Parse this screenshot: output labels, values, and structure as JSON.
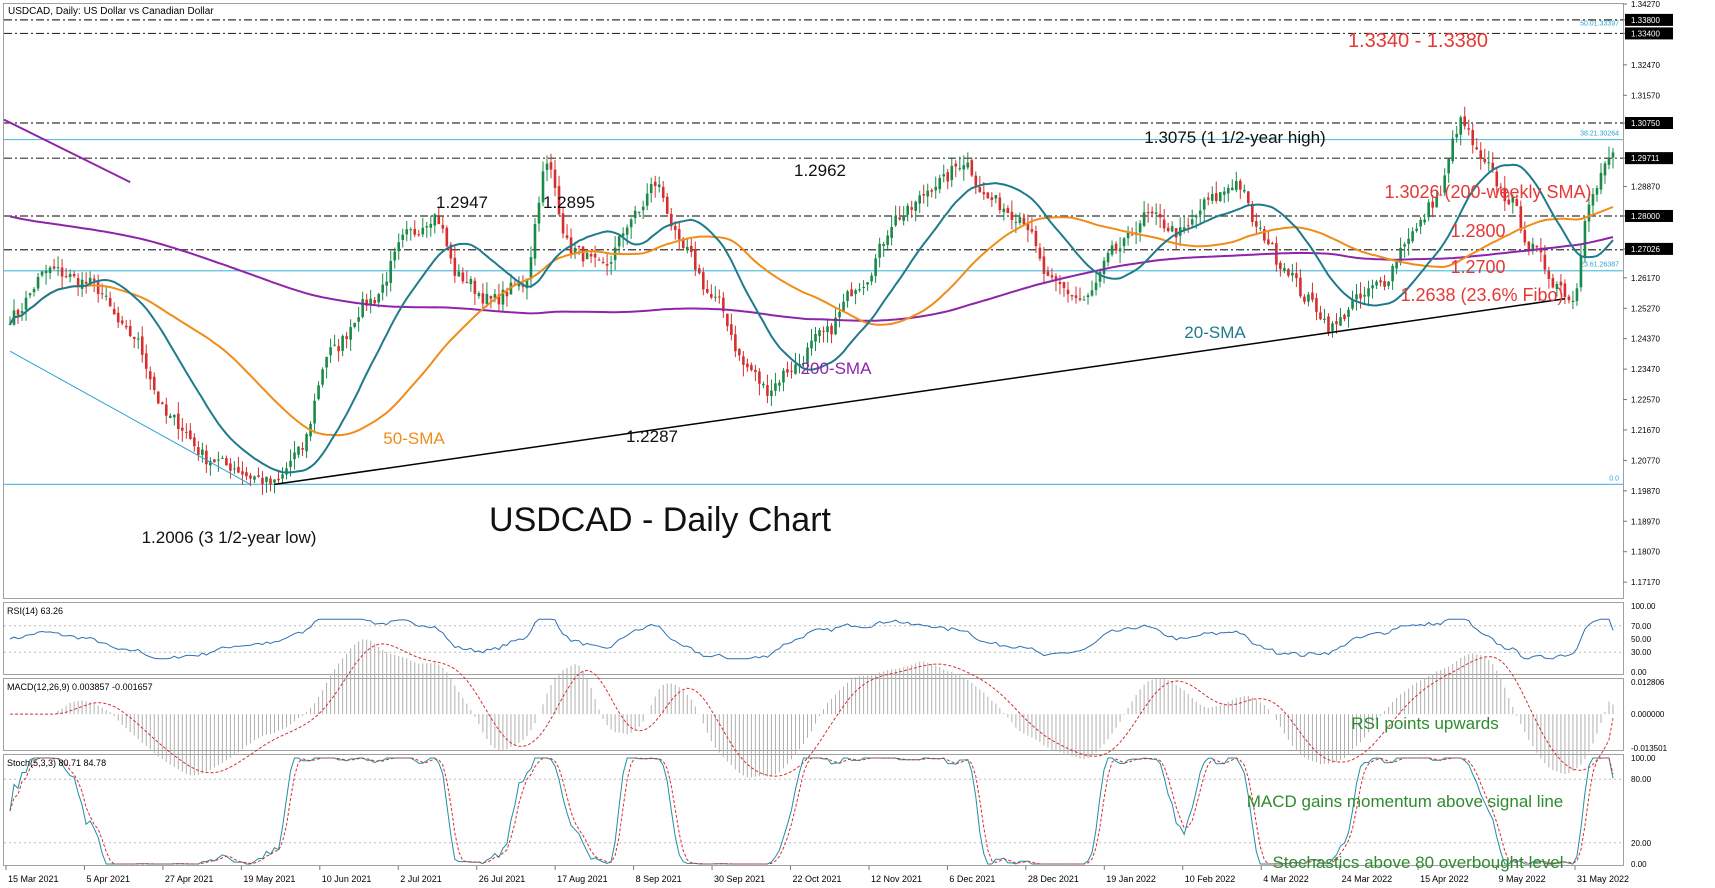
{
  "window": {
    "header": "USDCAD, Daily:  US Dollar vs Canadian Dollar"
  },
  "chart_data": {
    "type": "candlestick",
    "title": "USDCAD - Daily Chart",
    "symbol": "USDCAD",
    "timeframe": "Daily",
    "price_ylim": [
      1.167,
      1.3427
    ],
    "price_ticks": [
      "1.34270",
      "1.33800",
      "1.33400",
      "1.32470",
      "1.31570",
      "1.30750",
      "1.29711",
      "1.28870",
      "1.28000",
      "1.27026",
      "1.26170",
      "1.25270",
      "1.24370",
      "1.23470",
      "1.22570",
      "1.21670",
      "1.20770",
      "1.19870",
      "1.18970",
      "1.18070",
      "1.17170"
    ],
    "date_labels": [
      "15 Mar 2021",
      "5 Apr 2021",
      "27 Apr 2021",
      "19 May 2021",
      "10 Jun 2021",
      "2 Jul 2021",
      "26 Jul 2021",
      "17 Aug 2021",
      "8 Sep 2021",
      "30 Sep 2021",
      "22 Oct 2021",
      "12 Nov 2021",
      "6 Dec 2021",
      "28 Dec 2021",
      "19 Jan 2022",
      "10 Feb 2022",
      "4 Mar 2022",
      "24 Mar 2022",
      "15 Apr 2022",
      "9 May 2022",
      "31 May 2022"
    ],
    "ohlc_anchors": [
      [
        0,
        1.25
      ],
      [
        10,
        1.264
      ],
      [
        20,
        1.26
      ],
      [
        30,
        1.245
      ],
      [
        40,
        1.22
      ],
      [
        50,
        1.208
      ],
      [
        55,
        1.206
      ],
      [
        60,
        1.203
      ],
      [
        66,
        1.2006
      ],
      [
        72,
        1.21
      ],
      [
        80,
        1.24
      ],
      [
        90,
        1.255
      ],
      [
        100,
        1.275
      ],
      [
        106,
        1.28
      ],
      [
        112,
        1.262
      ],
      [
        120,
        1.255
      ],
      [
        128,
        1.26
      ],
      [
        134,
        1.2947
      ],
      [
        140,
        1.27
      ],
      [
        148,
        1.265
      ],
      [
        156,
        1.28
      ],
      [
        161,
        1.2895
      ],
      [
        168,
        1.27
      ],
      [
        176,
        1.255
      ],
      [
        184,
        1.235
      ],
      [
        189,
        1.2287
      ],
      [
        195,
        1.235
      ],
      [
        203,
        1.245
      ],
      [
        212,
        1.26
      ],
      [
        222,
        1.28
      ],
      [
        232,
        1.29
      ],
      [
        238,
        1.2962
      ],
      [
        244,
        1.285
      ],
      [
        252,
        1.28
      ],
      [
        260,
        1.26
      ],
      [
        268,
        1.255
      ],
      [
        276,
        1.27
      ],
      [
        284,
        1.28
      ],
      [
        292,
        1.275
      ],
      [
        300,
        1.285
      ],
      [
        306,
        1.29
      ],
      [
        312,
        1.275
      ],
      [
        318,
        1.265
      ],
      [
        324,
        1.255
      ],
      [
        330,
        1.247
      ],
      [
        336,
        1.255
      ],
      [
        342,
        1.26
      ],
      [
        350,
        1.275
      ],
      [
        356,
        1.285
      ],
      [
        362,
        1.3075
      ],
      [
        368,
        1.295
      ],
      [
        374,
        1.285
      ],
      [
        380,
        1.27
      ],
      [
        386,
        1.26
      ],
      [
        390,
        1.255
      ],
      [
        394,
        1.285
      ],
      [
        400,
        1.298
      ]
    ],
    "series": [
      {
        "name": "20-SMA",
        "color": "#1f7a8c",
        "period": 20
      },
      {
        "name": "50-SMA",
        "color": "#f08c18",
        "period": 50
      },
      {
        "name": "200-SMA",
        "color": "#8e24aa"
      }
    ],
    "horizontal_levels": [
      {
        "price": 1.338,
        "style": "dash-dot",
        "color": "#333333"
      },
      {
        "price": 1.334,
        "style": "dash-dot",
        "color": "#333333"
      },
      {
        "price": 1.3075,
        "style": "dash-dot",
        "color": "#333333"
      },
      {
        "price": 1.3026,
        "style": "solid",
        "color": "#5bc0de"
      },
      {
        "price": 1.2971,
        "style": "dash-dot",
        "color": "#333333"
      },
      {
        "price": 1.28,
        "style": "dash-dot",
        "color": "#333333"
      },
      {
        "price": 1.27,
        "style": "dash-dot",
        "color": "#333333"
      },
      {
        "price": 1.2638,
        "style": "solid",
        "color": "#5bc0de"
      },
      {
        "price": 1.2006,
        "style": "solid",
        "color": "#5bc0de"
      }
    ],
    "fibo_labels": [
      "50.01.33397",
      "38.21.30264",
      "23.61.26387",
      "0.0"
    ],
    "price_tag_labels": [
      "1.33800",
      "1.33400",
      "1.30750",
      "1.29711",
      "1.28000",
      "1.27026"
    ],
    "annotations": {
      "zone": "1.3340 - 1.3380",
      "high": "1.3075 (1 1/2-year high)",
      "weekly_sma": "1.3026 (200-weekly SMA)",
      "level_1280": "1.2800",
      "level_1270": "1.2700",
      "fibo": "1.2638 (23.6% Fibo)",
      "peak_2947": "1.2947",
      "peak_2962": "1.2962",
      "peak_2895": "1.2895",
      "low_2287": "1.2287",
      "low_2006": "1.2006 (3 1/2-year low)",
      "sma20": "20-SMA",
      "sma50": "50-SMA",
      "sma200": "200-SMA"
    },
    "rsi": {
      "label": "RSI(14) 63.26",
      "ticks": [
        "100.00",
        "70.00",
        "50.00",
        "30.00",
        "0.00"
      ],
      "note": "RSI points upwards",
      "last": 63.26
    },
    "macd": {
      "label": "MACD(12,26,9) 0.003857 -0.001657",
      "ticks": [
        "0.012806",
        "0.000000",
        "-0.013501"
      ],
      "note": "MACD gains momentum above signal line",
      "macd": 0.003857,
      "signal": -0.001657
    },
    "stoch": {
      "label": "Stoch(5,3,3) 80.71 84.78",
      "ticks": [
        "100.00",
        "80.00",
        "20.00",
        "0.00"
      ],
      "note": "Stochastics above 80 overbought level",
      "k": 80.71,
      "d": 84.78
    }
  }
}
